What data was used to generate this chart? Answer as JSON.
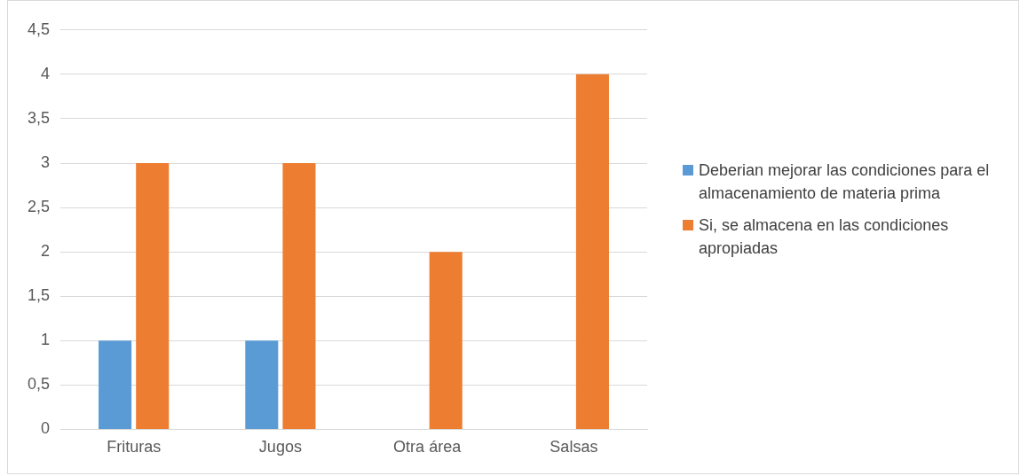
{
  "chart_data": {
    "type": "bar",
    "categories": [
      "Frituras",
      "Jugos",
      "Otra área",
      "Salsas"
    ],
    "series": [
      {
        "name": "Deberian mejorar las condiciones para el almacenamiento de materia prima",
        "color": "#5b9bd5",
        "values": [
          1,
          1,
          0,
          0
        ]
      },
      {
        "name": "Si, se almacena en las condiciones apropiadas",
        "color": "#ed7d31",
        "values": [
          3,
          3,
          2,
          4
        ]
      }
    ],
    "ylim": [
      0,
      4.5
    ],
    "yticks": [
      0,
      {
        "value": 0.5,
        "label": "0,5"
      },
      1,
      {
        "value": 1.5,
        "label": "1,5"
      },
      2,
      {
        "value": 2.5,
        "label": "2,5"
      },
      3,
      {
        "value": 3.5,
        "label": "3,5"
      },
      4,
      {
        "value": 4.5,
        "label": "4,5"
      }
    ],
    "grid": "y",
    "legend": "right"
  }
}
